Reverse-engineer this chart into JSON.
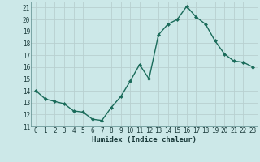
{
  "x": [
    0,
    1,
    2,
    3,
    4,
    5,
    6,
    7,
    8,
    9,
    10,
    11,
    12,
    13,
    14,
    15,
    16,
    17,
    18,
    19,
    20,
    21,
    22,
    23
  ],
  "y": [
    14.0,
    13.3,
    13.1,
    12.9,
    12.3,
    12.2,
    11.6,
    11.5,
    12.6,
    13.5,
    14.8,
    16.2,
    15.0,
    18.7,
    19.6,
    20.0,
    21.1,
    20.2,
    19.6,
    18.2,
    17.1,
    16.5,
    16.4,
    16.0
  ],
  "line_color": "#1a6b5a",
  "marker": "D",
  "marker_size": 2.0,
  "bg_color": "#cce8e8",
  "grid_color": "#b8d0d0",
  "xlabel": "Humidex (Indice chaleur)",
  "ylim": [
    11,
    21.5
  ],
  "yticks": [
    11,
    12,
    13,
    14,
    15,
    16,
    17,
    18,
    19,
    20,
    21
  ],
  "xticks": [
    0,
    1,
    2,
    3,
    4,
    5,
    6,
    7,
    8,
    9,
    10,
    11,
    12,
    13,
    14,
    15,
    16,
    17,
    18,
    19,
    20,
    21,
    22,
    23
  ],
  "tick_fontsize": 5.5,
  "xlabel_fontsize": 6.5,
  "line_width": 1.0
}
